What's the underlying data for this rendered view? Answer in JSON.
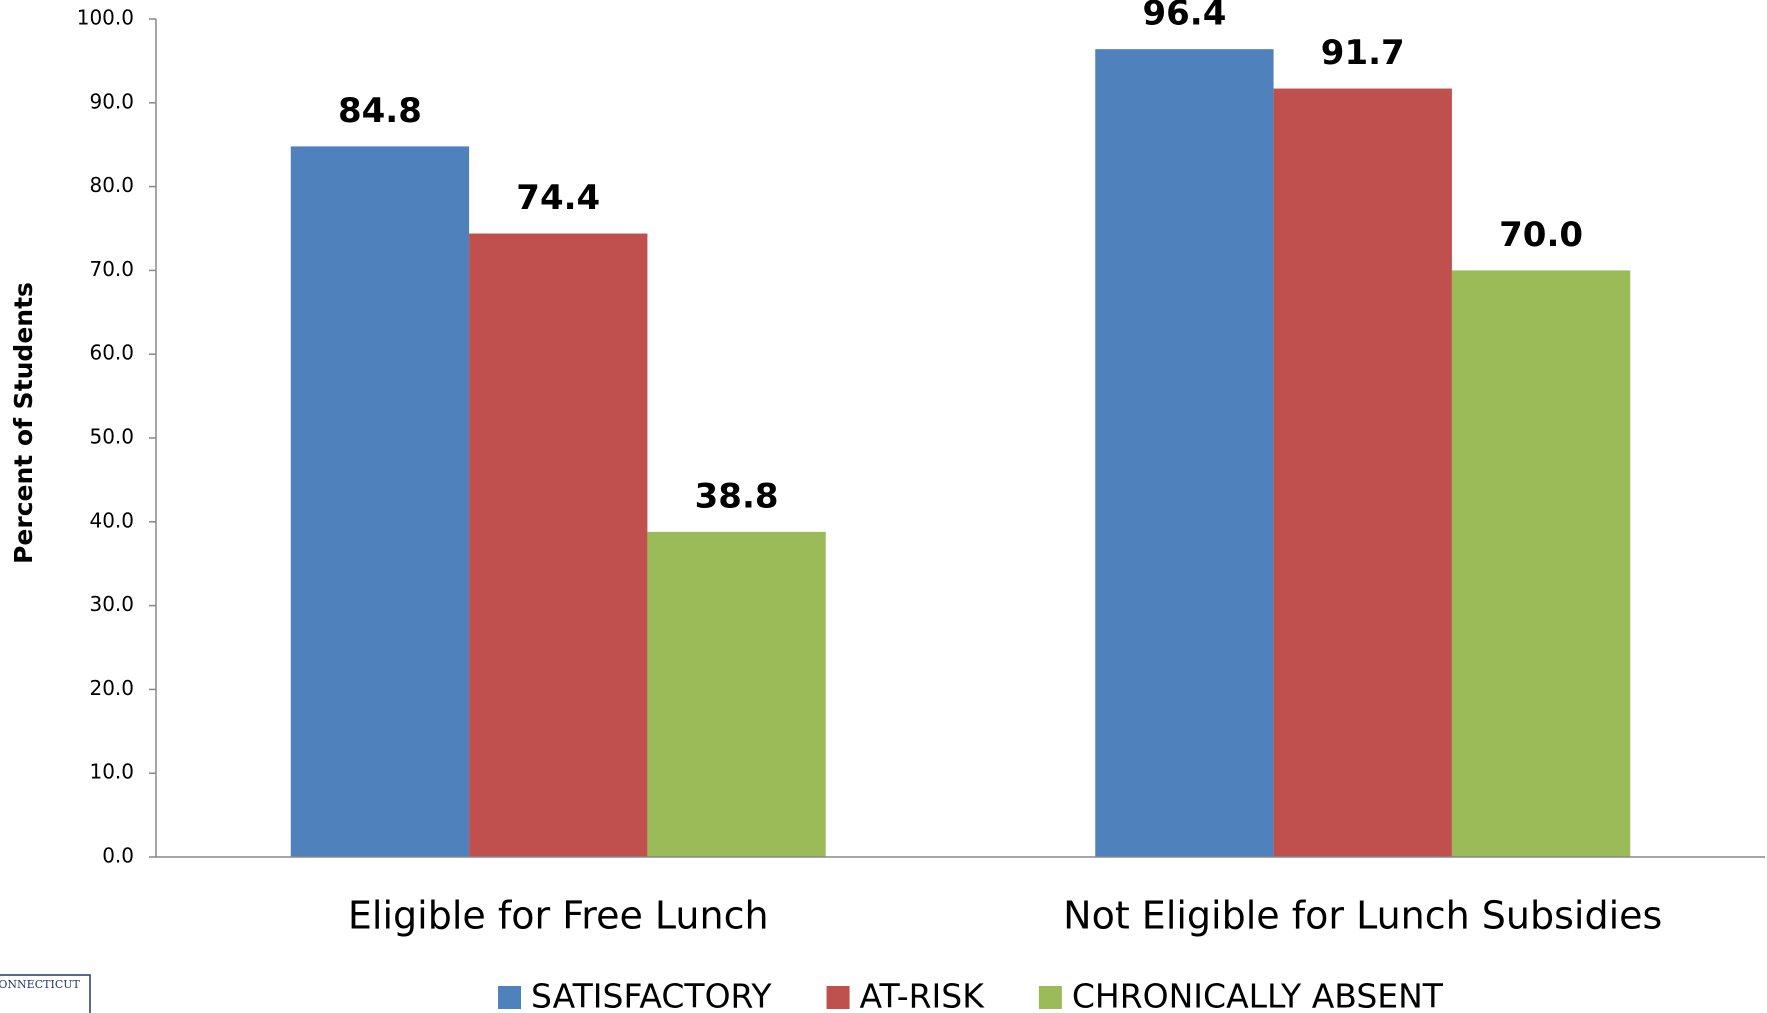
{
  "chart_data": {
    "type": "bar",
    "y_axis_label": "Percent of Students",
    "categories": [
      "Eligible for Free Lunch",
      "Not Eligible for Lunch Subsidies"
    ],
    "series": [
      {
        "name": "SATISFACTORY",
        "color": "#4f81bd",
        "values": [
          84.8,
          96.4
        ],
        "value_labels": [
          "84.8",
          "96.4"
        ]
      },
      {
        "name": "AT-RISK",
        "color": "#c0504d",
        "values": [
          74.4,
          91.7
        ],
        "value_labels": [
          "74.4",
          "91.7"
        ]
      },
      {
        "name": "CHRONICALLY ABSENT",
        "color": "#9bbb59",
        "values": [
          38.8,
          70.0
        ],
        "value_labels": [
          "38.8",
          "70.0"
        ]
      }
    ],
    "ylim": [
      0,
      100
    ],
    "yticks": [
      {
        "value": 0,
        "label": "0.0"
      },
      {
        "value": 10,
        "label": "10.0"
      },
      {
        "value": 20,
        "label": "20.0"
      },
      {
        "value": 30,
        "label": "30.0"
      },
      {
        "value": 40,
        "label": "40.0"
      },
      {
        "value": 50,
        "label": "50.0"
      },
      {
        "value": 60,
        "label": "60.0"
      },
      {
        "value": 70,
        "label": "70.0"
      },
      {
        "value": 80,
        "label": "80.0"
      },
      {
        "value": 90,
        "label": "90.0"
      },
      {
        "value": 100,
        "label": "100.0"
      }
    ],
    "grid": false,
    "legend": "bottom",
    "logo_text": "CONNECTICUT"
  }
}
